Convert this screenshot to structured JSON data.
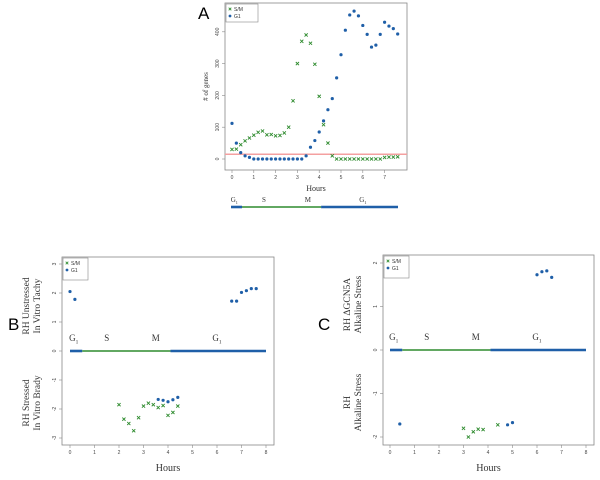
{
  "colors": {
    "sm": "#2e8b2e",
    "g1": "#1f5fa8",
    "threshold": "#f4a0a0",
    "axis": "#888888"
  },
  "legend": {
    "sm": "S/M",
    "g1": "G1"
  },
  "phases": {
    "labels": [
      {
        "text": "G1",
        "x": 0.15
      },
      {
        "text": "S",
        "x": 1.5
      },
      {
        "text": "M",
        "x": 3.5
      },
      {
        "text": "G1",
        "x": 6.0
      }
    ],
    "segments": [
      {
        "phase": "g1",
        "from": 0,
        "to": 0.5
      },
      {
        "phase": "sm",
        "from": 0.5,
        "to": 4.1
      },
      {
        "phase": "g1",
        "from": 4.1,
        "to": 8
      }
    ]
  },
  "chart_data": [
    {
      "panel": "A",
      "type": "scatter",
      "xlabel": "Hours",
      "ylabel": "# of genes",
      "xlim": [
        -0.2,
        7.8
      ],
      "ylim": [
        -20,
        480
      ],
      "xticks": [
        0,
        1,
        2,
        3,
        4,
        5,
        6,
        7
      ],
      "yticks": [
        0,
        100,
        200,
        300,
        400
      ],
      "threshold": 15,
      "series": [
        {
          "name": "S/M",
          "marker": "x",
          "x": [
            0,
            0.2,
            0.4,
            0.6,
            0.8,
            1.0,
            1.2,
            1.4,
            1.6,
            1.8,
            2.0,
            2.2,
            2.4,
            2.6,
            2.8,
            3.0,
            3.2,
            3.4,
            3.6,
            3.8,
            4.0,
            4.2,
            4.4,
            4.6,
            4.8,
            5.0,
            5.2,
            5.4,
            5.6,
            5.8,
            6.0,
            6.2,
            6.4,
            6.6,
            6.8,
            7.0,
            7.2,
            7.4,
            7.6
          ],
          "y": [
            30,
            31,
            45,
            57,
            66,
            75,
            84,
            88,
            76,
            77,
            73,
            74,
            82,
            100,
            183,
            300,
            370,
            390,
            364,
            298,
            197,
            108,
            50,
            10,
            0,
            0,
            0,
            0,
            0,
            0,
            0,
            0,
            0,
            0,
            0,
            5,
            6,
            6,
            7
          ]
        },
        {
          "name": "G1",
          "marker": "dot",
          "x": [
            0,
            0.2,
            0.4,
            0.6,
            0.8,
            1.0,
            1.2,
            1.4,
            1.6,
            1.8,
            2.0,
            2.2,
            2.4,
            2.6,
            2.8,
            3.0,
            3.2,
            3.4,
            3.6,
            3.8,
            4.0,
            4.2,
            4.4,
            4.6,
            4.8,
            5.0,
            5.2,
            5.4,
            5.6,
            5.8,
            6.0,
            6.2,
            6.4,
            6.6,
            6.8,
            7.0,
            7.2,
            7.4,
            7.6
          ],
          "y": [
            112,
            50,
            20,
            10,
            5,
            0,
            0,
            0,
            0,
            0,
            0,
            0,
            0,
            0,
            0,
            0,
            0,
            10,
            37,
            58,
            85,
            120,
            155,
            190,
            255,
            328,
            405,
            453,
            465,
            450,
            420,
            392,
            352,
            358,
            392,
            430,
            418,
            410,
            393
          ]
        }
      ]
    },
    {
      "panel": "B",
      "type": "scatter",
      "xlabel": "Hours",
      "ylabel_upper": [
        "RH Unstressed",
        "In Vitro Tachy"
      ],
      "ylabel_lower": [
        "RH Stressed",
        "In Vitro Brady"
      ],
      "xlim": [
        -0.3,
        8.3
      ],
      "ylim": [
        -3.2,
        3.3
      ],
      "xticks": [
        0,
        1,
        2,
        3,
        4,
        5,
        6,
        7,
        8
      ],
      "yticks": [
        -3,
        -2,
        -1,
        0,
        1,
        2,
        3
      ],
      "series": [
        {
          "name": "S/M",
          "marker": "x",
          "x": [
            2.0,
            2.2,
            2.4,
            2.6,
            2.8,
            3.0,
            3.2,
            3.4,
            3.6,
            3.8,
            4.0,
            4.2,
            4.4
          ],
          "y": [
            -1.85,
            -2.35,
            -2.5,
            -2.75,
            -2.3,
            -1.9,
            -1.8,
            -1.85,
            -1.95,
            -1.88,
            -2.22,
            -2.12,
            -1.9
          ]
        },
        {
          "name": "G1",
          "marker": "dot",
          "x": [
            0,
            0.2,
            6.6,
            6.8,
            7.0,
            7.2,
            7.4,
            7.6,
            3.6,
            3.8,
            4.0,
            4.2,
            4.4
          ],
          "y": [
            2.05,
            1.78,
            1.72,
            1.72,
            2.02,
            2.08,
            2.15,
            2.15,
            -1.67,
            -1.7,
            -1.75,
            -1.68,
            -1.6
          ]
        }
      ]
    },
    {
      "panel": "C",
      "type": "scatter",
      "xlabel": "Hours",
      "ylabel_upper": [
        "RH ΔGCN5A",
        "Alkaline Stress"
      ],
      "ylabel_lower": [
        "RH",
        "Alkaline Stress"
      ],
      "xlim": [
        -0.3,
        8.3
      ],
      "ylim": [
        -2.2,
        2.2
      ],
      "xticks": [
        0,
        1,
        2,
        3,
        4,
        5,
        6,
        7,
        8
      ],
      "yticks": [
        -2,
        -1,
        0,
        1,
        2
      ],
      "series": [
        {
          "name": "S/M",
          "marker": "x",
          "x": [
            3.0,
            3.2,
            3.4,
            3.6,
            3.8,
            4.4
          ],
          "y": [
            -1.8,
            -2.0,
            -1.88,
            -1.82,
            -1.83,
            -1.72
          ]
        },
        {
          "name": "G1",
          "marker": "dot",
          "x": [
            6.0,
            6.2,
            6.4,
            6.6,
            0.4,
            4.8,
            5.0
          ],
          "y": [
            1.73,
            1.8,
            1.82,
            1.67,
            -1.7,
            -1.72,
            -1.67
          ]
        }
      ]
    }
  ]
}
